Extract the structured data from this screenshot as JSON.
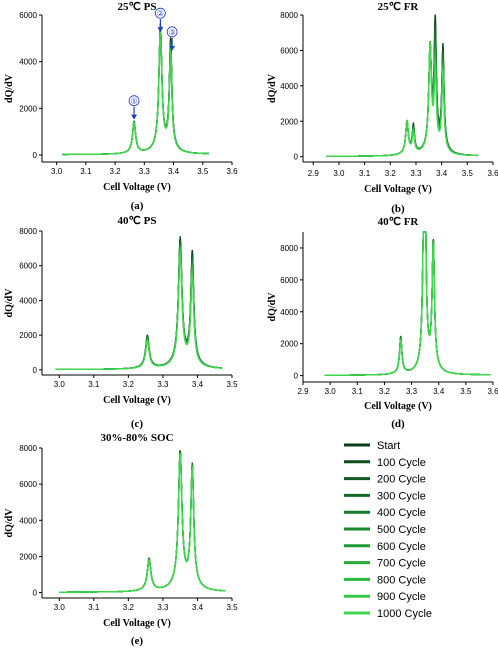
{
  "chart_data": [
    {
      "type": "line",
      "title": "25℃  PS",
      "panel_label": "(a)",
      "xlabel": "Cell Voltage (V)",
      "ylabel": "dQ/dV",
      "xlim": [
        2.95,
        3.6
      ],
      "ylim": [
        -300,
        6000
      ],
      "xticks": [
        "3.0",
        "3.1",
        "3.2",
        "3.3",
        "3.4",
        "3.5",
        "3.6"
      ],
      "yticks": [
        "0",
        "2000",
        "4000",
        "6000"
      ],
      "x_range": [
        3.02,
        3.52
      ],
      "peaks": [
        {
          "x": 3.265,
          "start": 1300,
          "end": 1250,
          "w": 0.006
        },
        {
          "x": 3.355,
          "start": 5100,
          "end": 4900,
          "w": 0.006
        },
        {
          "x": 3.39,
          "start": 4500,
          "end": 3900,
          "w": 0.005
        }
      ],
      "annotations": [
        {
          "text": "①",
          "x": 3.265,
          "y": 2200
        },
        {
          "text": "②",
          "x": 3.355,
          "y": 5950
        },
        {
          "text": "③",
          "x": 3.395,
          "y": 5150
        }
      ]
    },
    {
      "type": "line",
      "title": "25℃  FR",
      "panel_label": "(b)",
      "xlabel": "Cell Voltage (V)",
      "ylabel": "dQ/dV",
      "xlim": [
        2.86,
        3.6
      ],
      "ylim": [
        -300,
        8000
      ],
      "xticks": [
        "2.9",
        "3.0",
        "3.1",
        "3.2",
        "3.3",
        "3.4",
        "3.5",
        "3.6"
      ],
      "yticks": [
        "0",
        "2000",
        "4000",
        "6000",
        "8000"
      ],
      "x_range": [
        2.95,
        3.54
      ],
      "peaks": [
        {
          "x": 3.265,
          "start": 1700,
          "end": 1800,
          "w": 0.006
        },
        {
          "x": 3.29,
          "start": 1500,
          "end": 1100,
          "w": 0.005
        },
        {
          "x": 3.355,
          "start": 5400,
          "end": 5600,
          "w": 0.006
        },
        {
          "x": 3.375,
          "start": 6800,
          "end": 4000,
          "w": 0.005
        },
        {
          "x": 3.405,
          "start": 5600,
          "end": 4200,
          "w": 0.005
        }
      ],
      "annotations": []
    },
    {
      "type": "line",
      "title": "40℃  PS",
      "panel_label": "(c)",
      "xlabel": "Cell Voltage (V)",
      "ylabel": "dQ/dV",
      "xlim": [
        2.95,
        3.5
      ],
      "ylim": [
        -300,
        8000
      ],
      "xticks": [
        "3.0",
        "3.1",
        "3.2",
        "3.3",
        "3.4",
        "3.5"
      ],
      "yticks": [
        "0",
        "2000",
        "4000",
        "6000",
        "8000"
      ],
      "x_range": [
        2.99,
        3.47
      ],
      "peaks": [
        {
          "x": 3.255,
          "start": 1800,
          "end": 1500,
          "w": 0.006
        },
        {
          "x": 3.35,
          "start": 7000,
          "end": 6200,
          "w": 0.006
        },
        {
          "x": 3.385,
          "start": 6200,
          "end": 5000,
          "w": 0.005
        }
      ],
      "annotations": []
    },
    {
      "type": "line",
      "title": "40℃  FR",
      "panel_label": "(d)",
      "xlabel": "Cell Voltage (V)",
      "ylabel": "dQ/dV",
      "xlim": [
        2.9,
        3.6
      ],
      "ylim": [
        -400,
        9000
      ],
      "xticks": [
        "2.9",
        "3.0",
        "3.1",
        "3.2",
        "3.3",
        "3.4",
        "3.5",
        "3.6"
      ],
      "yticks": [
        "0",
        "2000",
        "4000",
        "6000",
        "8000"
      ],
      "x_range": [
        2.98,
        3.59
      ],
      "peaks": [
        {
          "x": 3.26,
          "start": 2200,
          "end": 2000,
          "w": 0.005
        },
        {
          "x": 3.345,
          "start": 7400,
          "end": 7300,
          "w": 0.005
        },
        {
          "x": 3.35,
          "start": 8500,
          "end": 8300,
          "w": 0.004
        },
        {
          "x": 3.38,
          "start": 7600,
          "end": 7400,
          "w": 0.005
        }
      ],
      "annotations": []
    },
    {
      "type": "line",
      "title": "30%-80% SOC",
      "panel_label": "(e)",
      "xlabel": "Cell Voltage (V)",
      "ylabel": "dQ/dV",
      "xlim": [
        2.95,
        3.5
      ],
      "ylim": [
        -300,
        8000
      ],
      "xticks": [
        "3.0",
        "3.1",
        "3.2",
        "3.3",
        "3.4",
        "3.5"
      ],
      "yticks": [
        "0",
        "2000",
        "4000",
        "6000",
        "8000"
      ],
      "x_range": [
        3.0,
        3.48
      ],
      "peaks": [
        {
          "x": 3.26,
          "start": 1700,
          "end": 1600,
          "w": 0.006
        },
        {
          "x": 3.35,
          "start": 7200,
          "end": 7000,
          "w": 0.006
        },
        {
          "x": 3.385,
          "start": 6400,
          "end": 6200,
          "w": 0.005
        }
      ],
      "annotations": []
    }
  ],
  "legend": {
    "entries": [
      "Start",
      "100 Cycle",
      "200 Cycle",
      "300 Cycle",
      "400 Cycle",
      "500 Cycle",
      "600 Cycle",
      "700 Cycle",
      "800 Cycle",
      "900 Cycle",
      "1000 Cycle"
    ],
    "colors": [
      "#0d3b17",
      "#114a1d",
      "#135a22",
      "#156a27",
      "#177a2c",
      "#198a31",
      "#1b9a36",
      "#22aa3b",
      "#2aba40",
      "#34c946",
      "#3fd84d"
    ]
  }
}
